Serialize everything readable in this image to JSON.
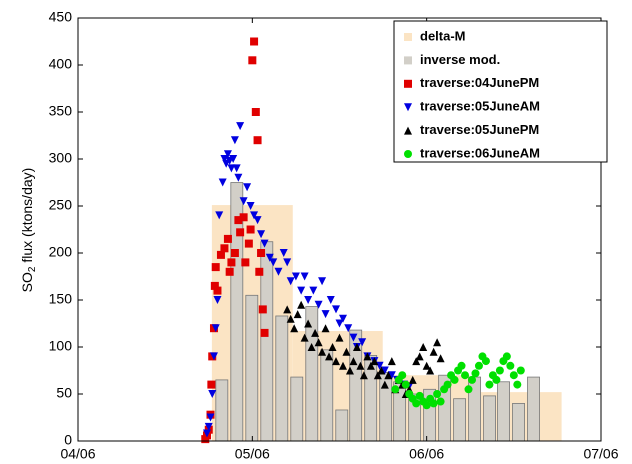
{
  "chart_data": {
    "type": "scatter",
    "ylabel": [
      "SO",
      "2",
      " flux (ktons/day)"
    ],
    "xlim": [
      0,
      3
    ],
    "xticks": [
      {
        "value": 0,
        "label": "04/06"
      },
      {
        "value": 1,
        "label": "05/06"
      },
      {
        "value": 2,
        "label": "06/06"
      },
      {
        "value": 3,
        "label": "07/06"
      }
    ],
    "ylim": [
      0,
      450
    ],
    "yticks": [
      0,
      50,
      100,
      150,
      200,
      250,
      300,
      350,
      400,
      450
    ],
    "legend": "upper right",
    "series": [
      {
        "name": "delta-M",
        "color": "#fbe4c4",
        "marker": "bins",
        "bins": [
          0.768,
          1.232,
          1.748,
          2.246,
          2.774
        ],
        "values": [
          251,
          117,
          70,
          52
        ]
      },
      {
        "name": "inverse mod.",
        "color": "#d2cfc8",
        "marker": "bar",
        "x": [
          0.825,
          0.911,
          0.997,
          1.083,
          1.169,
          1.255,
          1.341,
          1.427,
          1.513,
          1.593,
          1.679,
          1.765,
          1.845,
          1.931,
          2.017,
          2.103,
          2.189,
          2.275,
          2.361,
          2.441,
          2.527,
          2.613
        ],
        "values": [
          65,
          275,
          155,
          212,
          133,
          68,
          143,
          97,
          33,
          118,
          91,
          73,
          63,
          50,
          55,
          70,
          45,
          68,
          48,
          63,
          40,
          68
        ]
      },
      {
        "name": "traverse:04JunePM",
        "color": "#e00000",
        "marker": "square",
        "x": [
          0.73,
          0.74,
          0.75,
          0.76,
          0.765,
          0.77,
          0.78,
          0.785,
          0.79,
          0.8,
          0.82,
          0.84,
          0.86,
          0.87,
          0.88,
          0.9,
          0.92,
          0.93,
          0.95,
          0.96,
          0.98,
          0.99,
          1.0,
          1.01,
          1.02,
          1.03,
          1.04,
          1.05,
          1.06,
          1.07
        ],
        "values": [
          2,
          6,
          12,
          28,
          60,
          90,
          120,
          165,
          185,
          160,
          198,
          205,
          215,
          180,
          190,
          200,
          235,
          222,
          238,
          190,
          210,
          225,
          405,
          425,
          350,
          320,
          180,
          200,
          140,
          115
        ]
      },
      {
        "name": "traverse:05JuneAM",
        "color": "#0000e0",
        "marker": "triangle-down",
        "x": [
          0.74,
          0.75,
          0.76,
          0.77,
          0.78,
          0.79,
          0.8,
          0.81,
          0.83,
          0.84,
          0.85,
          0.86,
          0.87,
          0.88,
          0.89,
          0.9,
          0.91,
          0.92,
          0.93,
          0.95,
          0.97,
          0.99,
          1.01,
          1.03,
          1.05,
          1.07,
          1.1,
          1.12,
          1.15,
          1.18,
          1.2,
          1.22,
          1.25,
          1.28,
          1.3,
          1.32,
          1.35,
          1.38,
          1.4,
          1.42,
          1.45,
          1.48,
          1.5,
          1.52,
          1.55,
          1.58,
          1.6,
          1.63,
          1.66,
          1.7,
          1.73,
          1.76,
          1.8,
          1.83,
          1.87,
          1.9
        ],
        "values": [
          8,
          15,
          25,
          50,
          90,
          120,
          150,
          240,
          275,
          300,
          295,
          305,
          298,
          290,
          300,
          320,
          290,
          280,
          335,
          255,
          270,
          250,
          240,
          235,
          220,
          210,
          195,
          190,
          180,
          200,
          190,
          170,
          175,
          160,
          175,
          150,
          160,
          145,
          170,
          135,
          150,
          140,
          125,
          130,
          120,
          110,
          100,
          105,
          90,
          85,
          80,
          75,
          70,
          65,
          60,
          58
        ]
      },
      {
        "name": "traverse:05JunePM",
        "color": "#000000",
        "marker": "triangle-up",
        "x": [
          1.2,
          1.22,
          1.24,
          1.26,
          1.28,
          1.3,
          1.32,
          1.34,
          1.36,
          1.38,
          1.4,
          1.42,
          1.44,
          1.46,
          1.48,
          1.5,
          1.52,
          1.54,
          1.56,
          1.58,
          1.6,
          1.62,
          1.64,
          1.66,
          1.68,
          1.7,
          1.72,
          1.74,
          1.76,
          1.78,
          1.8,
          1.82,
          1.84,
          1.86,
          1.88,
          1.9,
          1.92,
          1.94,
          1.96,
          1.98,
          2.0,
          2.02,
          2.04,
          2.06,
          2.08
        ],
        "values": [
          140,
          130,
          120,
          135,
          145,
          110,
          125,
          100,
          115,
          105,
          95,
          120,
          90,
          100,
          85,
          110,
          80,
          95,
          75,
          85,
          100,
          80,
          70,
          90,
          80,
          85,
          70,
          75,
          60,
          70,
          85,
          55,
          65,
          60,
          50,
          55,
          65,
          85,
          90,
          100,
          80,
          75,
          95,
          105,
          88
        ]
      },
      {
        "name": "traverse:06JuneAM",
        "color": "#00e000",
        "marker": "circle",
        "x": [
          1.82,
          1.84,
          1.86,
          1.88,
          1.9,
          1.92,
          1.94,
          1.96,
          1.98,
          2.0,
          2.02,
          2.04,
          2.06,
          2.08,
          2.1,
          2.12,
          2.14,
          2.16,
          2.18,
          2.2,
          2.22,
          2.24,
          2.26,
          2.28,
          2.3,
          2.32,
          2.34,
          2.36,
          2.38,
          2.4,
          2.42,
          2.44,
          2.46,
          2.48,
          2.5,
          2.52,
          2.54
        ],
        "values": [
          55,
          65,
          70,
          60,
          50,
          45,
          40,
          48,
          42,
          38,
          45,
          40,
          50,
          42,
          55,
          60,
          70,
          65,
          75,
          80,
          70,
          55,
          65,
          72,
          80,
          90,
          85,
          60,
          70,
          65,
          75,
          85,
          90,
          80,
          70,
          60,
          75
        ]
      }
    ]
  }
}
